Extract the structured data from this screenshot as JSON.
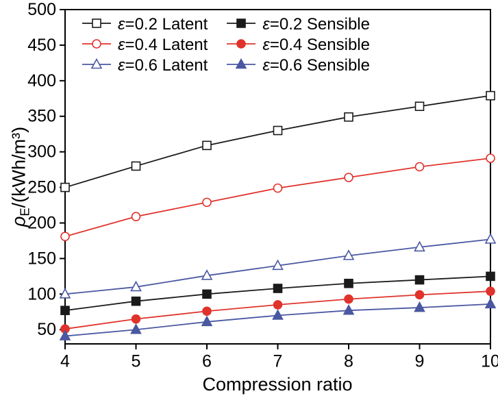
{
  "chart_data": {
    "type": "line",
    "title": "",
    "xlabel": "Compression ratio",
    "ylabel": {
      "symbol": "ρ",
      "subscript": "E",
      "units": "/(kWh/m³)"
    },
    "x": [
      4,
      5,
      6,
      7,
      8,
      9,
      10
    ],
    "xlim": [
      4,
      10
    ],
    "ylim": [
      30,
      500
    ],
    "xticks": [
      4,
      5,
      6,
      7,
      8,
      9,
      10
    ],
    "yticks": [
      50,
      100,
      150,
      200,
      250,
      300,
      350,
      400,
      450,
      500
    ],
    "grid": false,
    "legend_position": "top-left",
    "legend_columns": 2,
    "series": [
      {
        "name": "ε=0.2 Latent",
        "color": "#1a1a1a",
        "marker": "square-open",
        "values": [
          250,
          280,
          309,
          330,
          349,
          364,
          379
        ]
      },
      {
        "name": "ε=0.4 Latent",
        "color": "#e0332c",
        "marker": "circle-open",
        "values": [
          181,
          209,
          229,
          249,
          264,
          279,
          291
        ]
      },
      {
        "name": "ε=0.6 Latent",
        "color": "#4a58a2",
        "marker": "triangle-open",
        "values": [
          100,
          110,
          126,
          140,
          154,
          166,
          177
        ]
      },
      {
        "name": "ε=0.2 Sensible",
        "color": "#1a1a1a",
        "marker": "square-filled",
        "values": [
          77,
          90,
          100,
          108,
          115,
          120,
          125
        ]
      },
      {
        "name": "ε=0.4 Sensible",
        "color": "#e0332c",
        "marker": "circle-filled",
        "values": [
          51,
          65,
          76,
          85,
          93,
          99,
          104
        ]
      },
      {
        "name": "ε=0.6 Sensible",
        "color": "#4a58a2",
        "marker": "triangle-filled",
        "values": [
          41,
          50,
          61,
          70,
          77,
          81,
          86
        ]
      }
    ]
  }
}
